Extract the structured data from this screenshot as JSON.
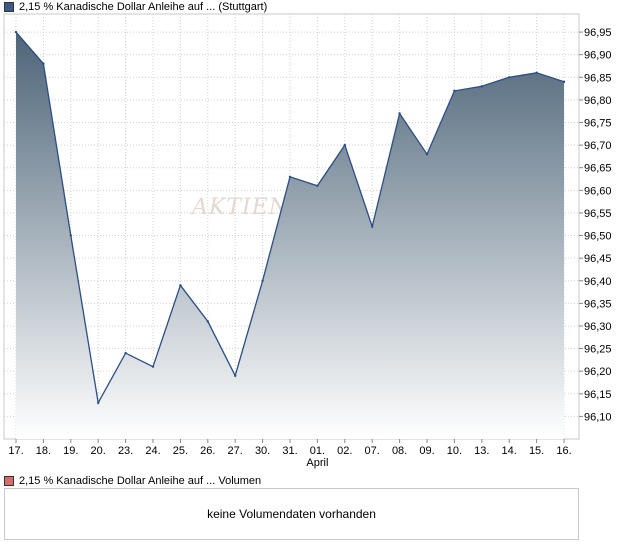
{
  "price_legend": "2,15 % Kanadische Dollar Anleihe auf ... (Stuttgart)",
  "volume_legend": "2,15 % Kanadische Dollar Anleihe auf ... Volumen",
  "volume_message": "keine Volumendaten vorhanden",
  "watermark": "AKTIEN",
  "colors": {
    "line": "#2b4e86",
    "fill_top": "#4d6478",
    "fill_bottom": "#ffffff",
    "grid": "#d0d0d0"
  },
  "chart_data": {
    "type": "area",
    "x": [
      "17.",
      "18.",
      "19.",
      "20.",
      "23.",
      "24.",
      "25.",
      "26.",
      "27.",
      "30.",
      "31.",
      "01.",
      "02.",
      "07.",
      "08.",
      "09.",
      "10.",
      "13.",
      "14.",
      "15.",
      "16."
    ],
    "x_group_label": "April",
    "series": [
      {
        "values": [
          96.95,
          96.88,
          96.5,
          96.13,
          96.24,
          96.21,
          96.39,
          96.31,
          96.19,
          96.4,
          96.63,
          96.61,
          96.7,
          96.52,
          96.77,
          96.68,
          96.82,
          96.83,
          96.85,
          96.86,
          96.84
        ]
      }
    ],
    "ylim": [
      96.05,
      96.99
    ],
    "yticks": [
      "96,10",
      "96,15",
      "96,20",
      "96,25",
      "96,30",
      "96,35",
      "96,40",
      "96,45",
      "96,50",
      "96,55",
      "96,60",
      "96,65",
      "96,70",
      "96,75",
      "96,80",
      "96,85",
      "96,90",
      "96,95"
    ],
    "y_axis_side": "right",
    "grid": true,
    "legend": "top-left"
  }
}
